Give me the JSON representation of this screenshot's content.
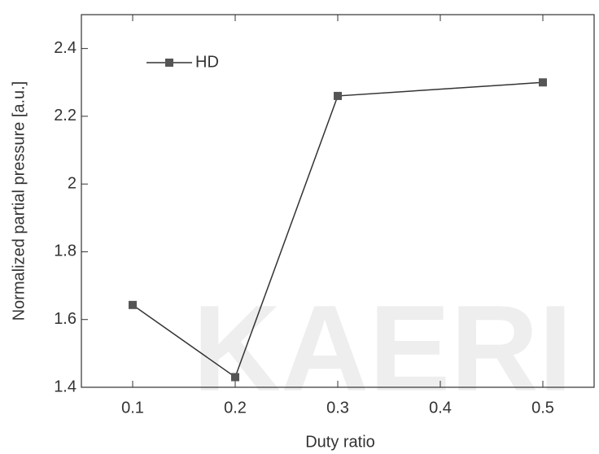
{
  "chart_data": {
    "type": "line",
    "x_label": "Duty ratio",
    "y_label": "Normalized partial pressure [a.u.]",
    "watermark": "KAERI",
    "x": [
      0.1,
      0.2,
      0.3,
      0.5
    ],
    "series": [
      {
        "name": "HD",
        "color": "#555555",
        "values": [
          1.643,
          1.43,
          2.26,
          2.3
        ]
      }
    ],
    "xlim": [
      0.05,
      0.55
    ],
    "xticks": [
      0.1,
      0.2,
      0.3,
      0.4,
      0.5
    ],
    "ylim": [
      1.4,
      2.5
    ],
    "yticks": [
      1.4,
      1.6,
      1.8,
      2.0,
      2.2,
      2.4
    ],
    "legend": "upper-left",
    "grid": false
  }
}
